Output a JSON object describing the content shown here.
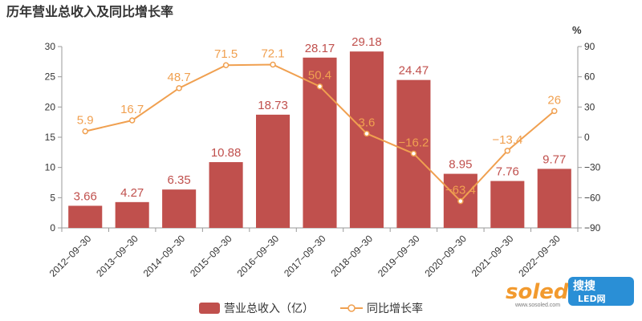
{
  "title": "历年营业总收入及同比增长率",
  "y2_unit": "%",
  "colors": {
    "bar": "#c0504d",
    "line": "#f0a050",
    "axis": "#999999",
    "grid": "#e6e6e6"
  },
  "legend": {
    "bar_label": "营业总收入（亿）",
    "line_label": "同比增长率",
    "position": "bottom-center"
  },
  "watermark": {
    "brand": "soled",
    "cn": "搜搜",
    "sub": "LED网",
    "url": "www.sosoled.com"
  },
  "chart_data": {
    "type": "bar+line",
    "categories": [
      "2012-09-30",
      "2013-09-30",
      "2014-09-30",
      "2015-09-30",
      "2016-09-30",
      "2017-09-30",
      "2018-09-30",
      "2019-09-30",
      "2020-09-30",
      "2021-09-30",
      "2022-09-30"
    ],
    "series": [
      {
        "name": "营业总收入（亿）",
        "type": "bar",
        "axis": "left",
        "values": [
          3.66,
          4.27,
          6.35,
          10.88,
          18.73,
          28.17,
          29.18,
          24.47,
          8.95,
          7.76,
          9.77
        ]
      },
      {
        "name": "同比增长率",
        "type": "line",
        "axis": "right",
        "values": [
          5.9,
          16.7,
          48.7,
          71.5,
          72.1,
          50.4,
          3.6,
          -16.2,
          -63.4,
          -13.4,
          26
        ]
      }
    ],
    "y_left": {
      "min": 0,
      "max": 30,
      "ticks": [
        0,
        5,
        10,
        15,
        20,
        25,
        30
      ]
    },
    "y_right": {
      "min": -90,
      "max": 90,
      "ticks": [
        -90,
        -60,
        -30,
        0,
        30,
        60,
        90
      ]
    },
    "grid": false
  }
}
